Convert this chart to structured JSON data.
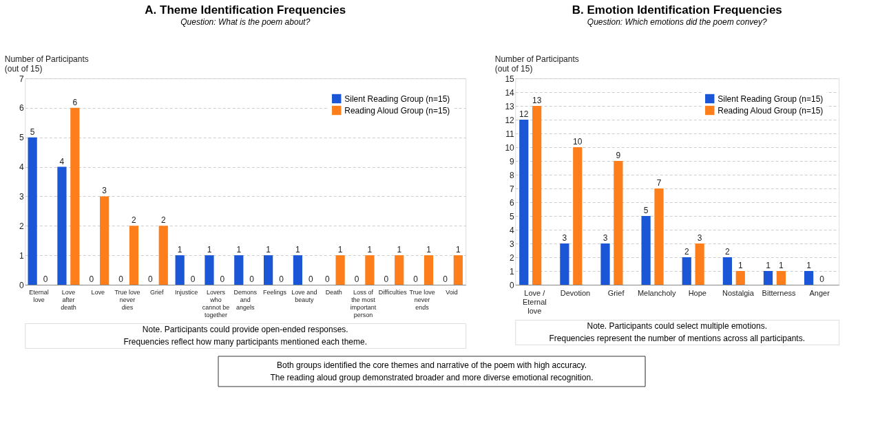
{
  "chart_data": [
    {
      "type": "bar",
      "title": "A. Theme Identification Frequencies",
      "subtitle": "Question: What is the poem about?",
      "ylabel": "Number of Participants (out of 15)",
      "categories": [
        "Eternal love",
        "Love after death",
        "Love",
        "True love never dies",
        "Grief",
        "Injustice",
        "Lovers who cannot be together",
        "Demons and angels",
        "Feelings",
        "Love and beauty",
        "Death",
        "Loss of the most important person",
        "Difficulties",
        "True love never ends",
        "Void"
      ],
      "series": [
        {
          "name": "Silent Reading Group (n=15)",
          "color": "#1a56d6",
          "values": [
            5,
            4,
            0,
            0,
            0,
            1,
            1,
            1,
            1,
            1,
            0,
            0,
            0,
            0,
            0
          ]
        },
        {
          "name": "Reading Aloud Group (n=15)",
          "color": "#fd7e1a",
          "values": [
            0,
            6,
            3,
            2,
            2,
            0,
            0,
            0,
            0,
            0,
            1,
            1,
            1,
            1,
            1
          ]
        }
      ],
      "ylim": [
        0,
        7
      ],
      "yticks": [
        0,
        1,
        2,
        3,
        4,
        5,
        6,
        7
      ],
      "grid": "y",
      "legend": "top right",
      "data_labels": true,
      "annotations": [
        "Note. Participants could provide open-ended responses.",
        "Frequencies reflect how many participants mentioned each theme."
      ]
    },
    {
      "type": "bar",
      "title": "B. Emotion Identification Frequencies",
      "subtitle": "Question: Which emotions did the poem convey?",
      "ylabel": "Number of Participants (out of 15)",
      "categories": [
        "Love / Eternal love",
        "Devotion",
        "Grief",
        "Melancholy",
        "Hope",
        "Nostalgia",
        "Bitterness",
        "Anger"
      ],
      "series": [
        {
          "name": "Silent Reading Group (n=15)",
          "color": "#1a56d6",
          "values": [
            12,
            3,
            3,
            5,
            2,
            2,
            1,
            1
          ]
        },
        {
          "name": "Reading Aloud Group (n=15)",
          "color": "#fd7e1a",
          "values": [
            13,
            10,
            9,
            7,
            3,
            1,
            1,
            0
          ]
        }
      ],
      "ylim": [
        0,
        15
      ],
      "yticks": [
        0,
        1,
        2,
        3,
        4,
        5,
        6,
        7,
        8,
        9,
        10,
        11,
        12,
        13,
        14,
        15
      ],
      "grid": "y",
      "legend": "top right",
      "data_labels": true,
      "annotations": [
        "Note. Participants could select multiple emotions.",
        "Frequencies represent the number of mentions across all participants."
      ]
    },
    {
      "type": "other",
      "annotations": [
        "Both groups identified the core themes and narrative of the poem with high accuracy.",
        "The reading aloud group demonstrated broader and more diverse emotional recognition."
      ]
    }
  ]
}
